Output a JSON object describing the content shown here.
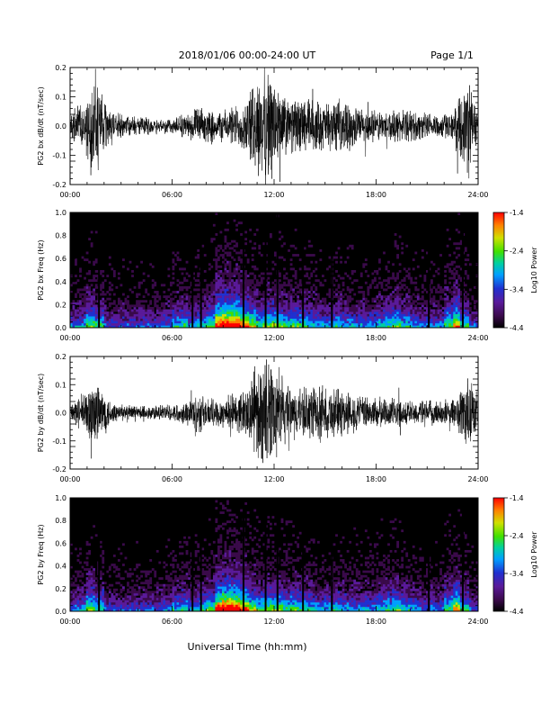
{
  "header": {
    "title": "2018/01/06  00:00-24:00 UT",
    "page": "Page 1/1"
  },
  "footer": {
    "xlabel": "Universal Time (hh:mm)"
  },
  "colors": {
    "trace": "#000000",
    "spectrogram_background": "#000000",
    "colorbar_stops": [
      "#000000",
      "#3a0a4a",
      "#5a1a9a",
      "#2030d0",
      "#00a0ff",
      "#00d0a0",
      "#40e000",
      "#d0e000",
      "#ff8000",
      "#ff0000"
    ]
  },
  "chart_data": [
    {
      "type": "line",
      "name": "bx-time-series",
      "ylabel": "PG2 bx dB/dt (nT/sec)",
      "ylim": [
        -0.2,
        0.2
      ],
      "yticks": [
        "0.2",
        "0.1",
        "0.0",
        "-0.1",
        "-0.2"
      ],
      "ytick_values": [
        0.2,
        0.1,
        0.0,
        -0.1,
        -0.2
      ],
      "xlim_hours": [
        0,
        24
      ],
      "xticks": [
        "00:00",
        "06:00",
        "12:00",
        "18:00",
        "24:00"
      ],
      "envelope": {
        "hours": [
          0,
          0.5,
          1.0,
          1.5,
          2.0,
          2.5,
          3.5,
          5,
          6,
          7,
          7.5,
          8,
          9,
          10,
          10.5,
          11,
          11.5,
          12,
          12.5,
          13,
          14,
          15,
          16,
          17,
          18,
          19,
          20,
          21,
          22,
          22.5,
          23,
          23.5,
          24
        ],
        "amplitude": [
          0.05,
          0.08,
          0.12,
          0.2,
          0.1,
          0.05,
          0.04,
          0.03,
          0.03,
          0.05,
          0.07,
          0.06,
          0.06,
          0.09,
          0.12,
          0.2,
          0.22,
          0.2,
          0.13,
          0.1,
          0.11,
          0.09,
          0.1,
          0.07,
          0.06,
          0.06,
          0.06,
          0.05,
          0.05,
          0.05,
          0.12,
          0.2,
          0.05
        ]
      }
    },
    {
      "type": "heatmap",
      "name": "bx-spectrogram",
      "ylabel": "PG2 bx Freq (Hz)",
      "ylim": [
        0.0,
        1.0
      ],
      "yticks": [
        "1.0",
        "0.8",
        "0.6",
        "0.4",
        "0.2",
        "0.0"
      ],
      "ytick_values": [
        1.0,
        0.8,
        0.6,
        0.4,
        0.2,
        0.0
      ],
      "xlim_hours": [
        0,
        24
      ],
      "xticks": [
        "00:00",
        "06:00",
        "12:00",
        "18:00",
        "24:00"
      ],
      "colorbar": {
        "label": "Log10 Power",
        "range": [
          -4.4,
          -1.4
        ],
        "ticks": [
          "-1.4",
          "-2.4",
          "-3.4",
          "-4.4"
        ],
        "tick_values": [
          -1.4,
          -2.4,
          -3.4,
          -4.4
        ]
      },
      "gap_hours": [
        1.7,
        7.2,
        7.7,
        10.2,
        11.5,
        12.2,
        13.7,
        15.4,
        21.1,
        23.1
      ]
    },
    {
      "type": "line",
      "name": "by-time-series",
      "ylabel": "PG2 by dB/dt (nT/sec)",
      "ylim": [
        -0.2,
        0.2
      ],
      "yticks": [
        "0.2",
        "0.1",
        "0.0",
        "-0.1",
        "-0.2"
      ],
      "ytick_values": [
        0.2,
        0.1,
        0.0,
        -0.1,
        -0.2
      ],
      "xlim_hours": [
        0,
        24
      ],
      "xticks": [
        "00:00",
        "06:00",
        "12:00",
        "18:00",
        "24:00"
      ],
      "envelope": {
        "hours": [
          0,
          0.5,
          1.0,
          1.5,
          2.0,
          2.5,
          3.5,
          5,
          6,
          7,
          7.5,
          8,
          9,
          10,
          10.5,
          11,
          11.5,
          12,
          12.5,
          13,
          14,
          15,
          16,
          17,
          18,
          19,
          20,
          21,
          22,
          22.5,
          23,
          23.5,
          24
        ],
        "amplitude": [
          0.04,
          0.06,
          0.1,
          0.15,
          0.09,
          0.04,
          0.03,
          0.03,
          0.03,
          0.05,
          0.09,
          0.06,
          0.06,
          0.08,
          0.12,
          0.18,
          0.22,
          0.21,
          0.14,
          0.09,
          0.11,
          0.1,
          0.1,
          0.07,
          0.06,
          0.06,
          0.05,
          0.05,
          0.05,
          0.05,
          0.1,
          0.18,
          0.04
        ]
      }
    },
    {
      "type": "heatmap",
      "name": "by-spectrogram",
      "ylabel": "PG2 by Freq (Hz)",
      "ylim": [
        0.0,
        1.0
      ],
      "yticks": [
        "1.0",
        "0.8",
        "0.6",
        "0.4",
        "0.2",
        "0.0"
      ],
      "ytick_values": [
        1.0,
        0.8,
        0.6,
        0.4,
        0.2,
        0.0
      ],
      "xlim_hours": [
        0,
        24
      ],
      "xticks": [
        "00:00",
        "06:00",
        "12:00",
        "18:00",
        "24:00"
      ],
      "colorbar": {
        "label": "Log10 Power",
        "range": [
          -4.4,
          -1.4
        ],
        "ticks": [
          "-1.4",
          "-2.4",
          "-3.4",
          "-4.4"
        ],
        "tick_values": [
          -1.4,
          -2.4,
          -3.4,
          -4.4
        ]
      },
      "gap_hours": [
        1.7,
        7.2,
        7.7,
        10.2,
        11.5,
        12.2,
        13.7,
        15.4,
        21.1,
        23.1
      ]
    }
  ]
}
